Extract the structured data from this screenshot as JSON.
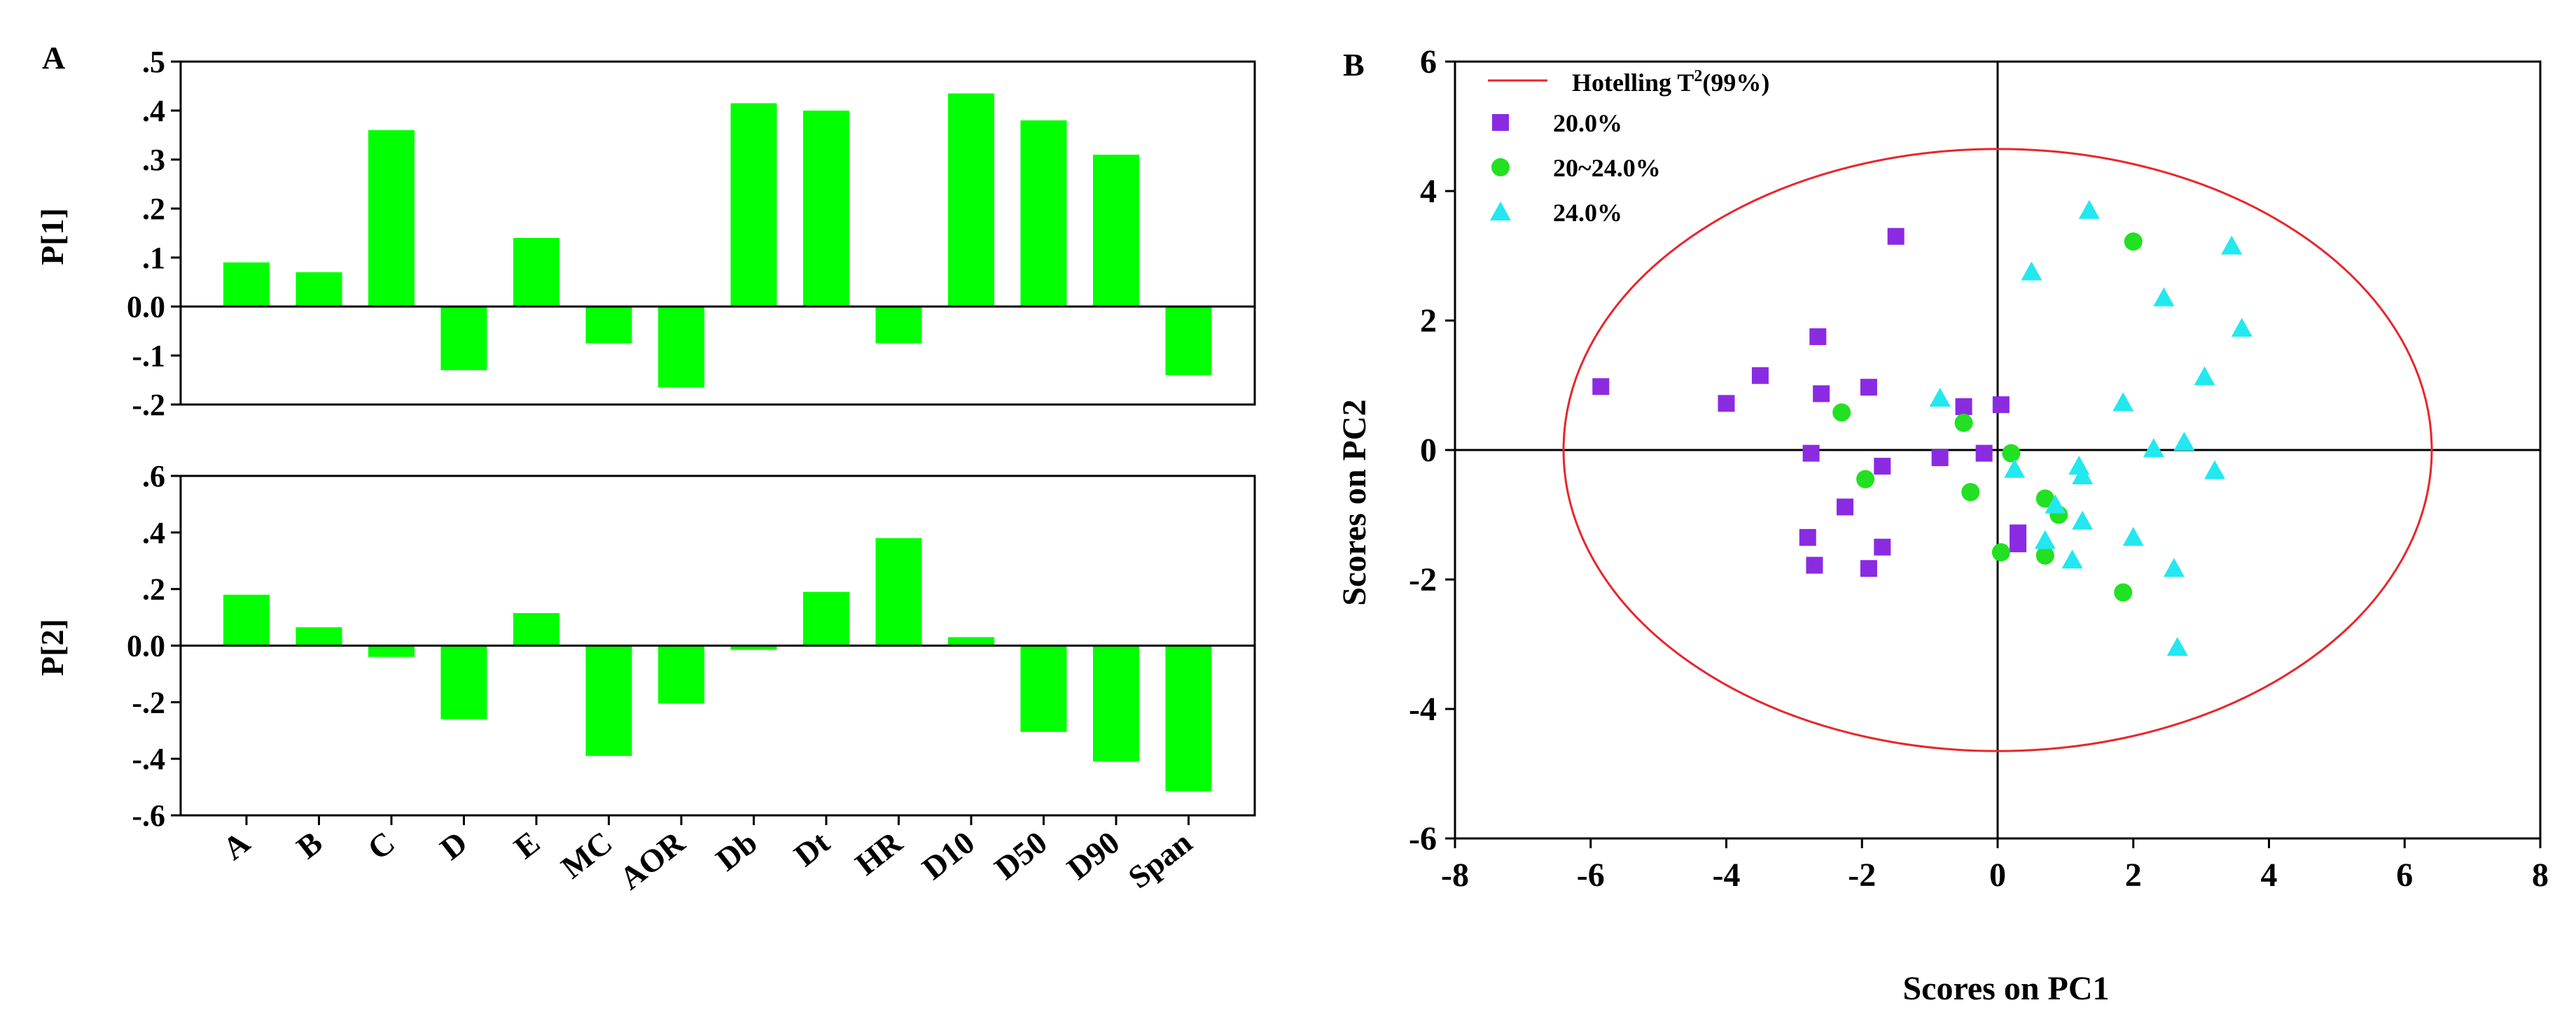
{
  "colors": {
    "bar": "#00ff00",
    "ellipse": "#e8262c",
    "series_20": "#8a2be2",
    "series_20_24": "#22e022",
    "series_24": "#22e8f0",
    "axis": "#000000"
  },
  "chart_data": [
    {
      "type": "bar",
      "panel_label": "A",
      "title": "",
      "ylabel": "P[1]",
      "categories": [
        "A",
        "B",
        "C",
        "D",
        "E",
        "MC",
        "AOR",
        "Db",
        "Dt",
        "HR",
        "D10",
        "D50",
        "D90",
        "Span"
      ],
      "values": [
        0.09,
        0.07,
        0.36,
        -0.13,
        0.14,
        -0.075,
        -0.165,
        0.415,
        0.4,
        -0.075,
        0.435,
        0.38,
        0.31,
        -0.14
      ],
      "ylim": [
        -0.2,
        0.5
      ],
      "yticks": [
        -0.2,
        -0.1,
        0.0,
        0.1,
        0.2,
        0.3,
        0.4,
        0.5
      ],
      "ytick_labels": [
        "-.2",
        "-.1",
        "0.0",
        ".1",
        ".2",
        ".3",
        ".4",
        ".5"
      ]
    },
    {
      "type": "bar",
      "panel_label": "",
      "title": "",
      "ylabel": "P[2]",
      "categories": [
        "A",
        "B",
        "C",
        "D",
        "E",
        "MC",
        "AOR",
        "Db",
        "Dt",
        "HR",
        "D10",
        "D50",
        "D90",
        "Span"
      ],
      "values": [
        0.18,
        0.065,
        -0.04,
        -0.26,
        0.115,
        -0.39,
        -0.205,
        -0.015,
        0.19,
        0.38,
        0.03,
        -0.305,
        -0.41,
        -0.515
      ],
      "ylim": [
        -0.6,
        0.6
      ],
      "yticks": [
        -0.6,
        -0.4,
        -0.2,
        0.0,
        0.2,
        0.4,
        0.6
      ],
      "ytick_labels": [
        "-.6",
        "-.4",
        "-.2",
        "0.0",
        ".2",
        ".4",
        ".6"
      ]
    },
    {
      "type": "scatter",
      "panel_label": "B",
      "title": "",
      "xlabel": "Scores on PC1",
      "ylabel": "Scores on PC2",
      "xlim": [
        -8,
        8
      ],
      "ylim": [
        -6,
        6
      ],
      "xticks": [
        -8,
        -6,
        -4,
        -2,
        0,
        2,
        4,
        6,
        8
      ],
      "yticks": [
        -6,
        -4,
        -2,
        0,
        2,
        4,
        6
      ],
      "ellipse": {
        "name": "Hotelling T",
        "name_sup": "2",
        "name_suffix": "(99%)",
        "a": 6.4,
        "b": 4.65
      },
      "series": [
        {
          "name": "20.0%",
          "marker": "square",
          "points": [
            [
              -5.85,
              0.98
            ],
            [
              -4.0,
              0.72
            ],
            [
              -3.5,
              1.15
            ],
            [
              -2.65,
              1.75
            ],
            [
              -2.6,
              0.87
            ],
            [
              -1.9,
              0.97
            ],
            [
              -1.5,
              3.3
            ],
            [
              -2.75,
              -0.05
            ],
            [
              -2.8,
              -1.35
            ],
            [
              -2.7,
              -1.78
            ],
            [
              -2.25,
              -0.88
            ],
            [
              -1.9,
              -1.83
            ],
            [
              -1.7,
              -0.25
            ],
            [
              -1.7,
              -1.5
            ],
            [
              -0.5,
              0.67
            ],
            [
              -0.85,
              -0.12
            ],
            [
              -0.2,
              -0.05
            ],
            [
              0.05,
              0.7
            ],
            [
              0.3,
              -1.28
            ],
            [
              0.3,
              -1.45
            ]
          ]
        },
        {
          "name": "20~24.0%",
          "marker": "circle",
          "points": [
            [
              -2.3,
              0.58
            ],
            [
              -1.95,
              -0.45
            ],
            [
              -0.5,
              0.42
            ],
            [
              -0.4,
              -0.65
            ],
            [
              0.2,
              -0.05
            ],
            [
              0.05,
              -1.58
            ],
            [
              0.7,
              -0.75
            ],
            [
              0.9,
              -1.0
            ],
            [
              0.7,
              -1.63
            ],
            [
              2.0,
              3.22
            ],
            [
              1.85,
              -2.2
            ]
          ]
        },
        {
          "name": "24.0%",
          "marker": "triangle",
          "points": [
            [
              -0.85,
              0.8
            ],
            [
              0.25,
              -0.3
            ],
            [
              0.5,
              2.75
            ],
            [
              0.7,
              -1.4
            ],
            [
              0.85,
              -0.85
            ],
            [
              1.1,
              -1.7
            ],
            [
              1.2,
              -0.25
            ],
            [
              1.25,
              -0.4
            ],
            [
              1.25,
              -1.1
            ],
            [
              1.35,
              3.7
            ],
            [
              1.85,
              0.73
            ],
            [
              2.0,
              -1.35
            ],
            [
              2.3,
              0.02
            ],
            [
              2.45,
              2.35
            ],
            [
              2.6,
              -1.83
            ],
            [
              2.65,
              -3.05
            ],
            [
              2.75,
              0.12
            ],
            [
              3.05,
              1.13
            ],
            [
              3.2,
              -0.32
            ],
            [
              3.45,
              3.15
            ],
            [
              3.6,
              1.88
            ]
          ]
        }
      ]
    }
  ]
}
